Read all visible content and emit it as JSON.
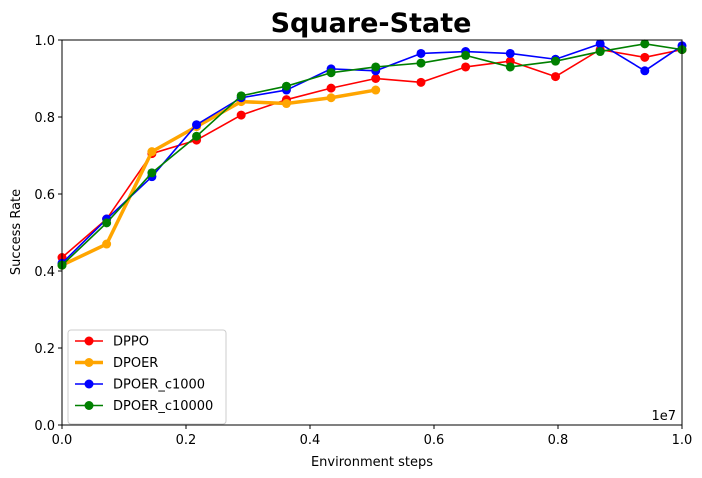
{
  "chart_data": {
    "type": "line",
    "title": "Square-State",
    "xlabel": "Environment steps",
    "ylabel": "Success Rate",
    "x_multiplier_label": "1e7",
    "xlim": [
      0,
      1.0
    ],
    "ylim": [
      0,
      1.0
    ],
    "xticks": [
      "0.0",
      "0.2",
      "0.4",
      "0.6",
      "0.8",
      "1.0"
    ],
    "yticks": [
      "0.0",
      "0.2",
      "0.4",
      "0.6",
      "0.8",
      "1.0"
    ],
    "grid": false,
    "legend_position": "lower-left",
    "series": [
      {
        "name": "DPPO",
        "color": "#ff0000",
        "x": [
          0.0,
          0.072,
          0.145,
          0.217,
          0.289,
          0.362,
          0.434,
          0.506,
          0.579,
          0.651,
          0.723,
          0.796,
          0.868,
          0.94,
          1.0
        ],
        "y": [
          0.435,
          0.535,
          0.705,
          0.74,
          0.805,
          0.845,
          0.875,
          0.9,
          0.89,
          0.93,
          0.945,
          0.905,
          0.975,
          0.955,
          0.975
        ]
      },
      {
        "name": "DPOER",
        "color": "#ffa500",
        "bold": true,
        "x": [
          0.0,
          0.072,
          0.145,
          0.217,
          0.289,
          0.362,
          0.434,
          0.506
        ],
        "y": [
          0.415,
          0.47,
          0.71,
          0.775,
          0.84,
          0.835,
          0.85,
          0.87
        ]
      },
      {
        "name": "DPOER_c1000",
        "color": "#0000ff",
        "x": [
          0.0,
          0.072,
          0.145,
          0.217,
          0.289,
          0.362,
          0.434,
          0.506,
          0.579,
          0.651,
          0.723,
          0.796,
          0.868,
          0.94,
          1.0
        ],
        "y": [
          0.42,
          0.535,
          0.645,
          0.78,
          0.85,
          0.87,
          0.925,
          0.92,
          0.965,
          0.97,
          0.965,
          0.95,
          0.99,
          0.92,
          0.985
        ]
      },
      {
        "name": "DPOER_c10000",
        "color": "#008000",
        "x": [
          0.0,
          0.072,
          0.145,
          0.217,
          0.289,
          0.362,
          0.434,
          0.506,
          0.579,
          0.651,
          0.723,
          0.796,
          0.868,
          0.94,
          1.0
        ],
        "y": [
          0.415,
          0.525,
          0.655,
          0.75,
          0.855,
          0.88,
          0.915,
          0.93,
          0.94,
          0.96,
          0.93,
          0.945,
          0.97,
          0.99,
          0.975
        ]
      }
    ]
  }
}
